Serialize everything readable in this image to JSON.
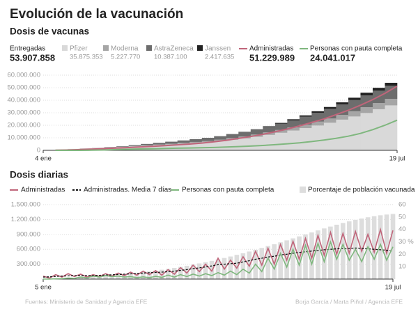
{
  "title": "Evolución de la vacunación",
  "source": "Fuentes: Ministerio de Sanidad y Agencia EFE",
  "credit": "Borja García / Marta Piñol / Agencia EFE",
  "chart_data": [
    {
      "type": "area",
      "stacked": true,
      "title": "Dosis de vacunas",
      "total_name": "Entregadas",
      "total": "53.907.858",
      "categories": [
        "4 ene",
        null,
        null,
        null,
        null,
        null,
        null,
        null,
        null,
        null,
        null,
        null,
        null,
        null,
        null,
        null,
        null,
        null,
        null,
        null,
        null,
        null,
        null,
        null,
        null,
        null,
        null,
        null,
        "19 jul"
      ],
      "ylim": [
        0,
        60000000
      ],
      "yticks": [
        {
          "value": 0,
          "label": "0"
        },
        {
          "value": 10000000,
          "label": "10.000.000"
        },
        {
          "value": 20000000,
          "label": "20.000.000"
        },
        {
          "value": 30000000,
          "label": "30.000.000"
        },
        {
          "value": 40000000,
          "label": "40.000.000"
        },
        {
          "value": 50000000,
          "label": "50.000.000"
        },
        {
          "value": 60000000,
          "label": "60.000.000"
        }
      ],
      "grid": true,
      "series": [
        {
          "name": "Pfizer",
          "legend_value": "35.875.353",
          "color": "#d9d9d9",
          "values": [
            350000,
            700000,
            1100000,
            1500000,
            1900000,
            2300000,
            2600000,
            3100000,
            3600000,
            4100000,
            4600000,
            5200000,
            5800000,
            6500000,
            7300000,
            8400000,
            9500000,
            10800000,
            12300000,
            14000000,
            15800000,
            17700000,
            19800000,
            22000000,
            24500000,
            27000000,
            29800000,
            32800000,
            35875353
          ]
        },
        {
          "name": "Moderna",
          "legend_value": "5.227.770",
          "color": "#a6a6a6",
          "values": [
            0,
            0,
            50000,
            100000,
            150000,
            200000,
            300000,
            400000,
            500000,
            600000,
            700000,
            800000,
            900000,
            1000000,
            1200000,
            1400000,
            1600000,
            1800000,
            2000000,
            2200000,
            2500000,
            2800000,
            3100000,
            3400000,
            3800000,
            4200000,
            4600000,
            4900000,
            5227770
          ]
        },
        {
          "name": "AstraZeneca",
          "legend_value": "10.387.100",
          "color": "#6d6d6d",
          "values": [
            0,
            0,
            0,
            0,
            0,
            200000,
            400000,
            700000,
            1000000,
            1300000,
            1600000,
            1900000,
            2200000,
            2500000,
            2800000,
            3100000,
            3500000,
            3900000,
            4400000,
            5000000,
            5600000,
            6300000,
            7000000,
            7700000,
            8300000,
            8900000,
            9500000,
            9900000,
            10387100
          ]
        },
        {
          "name": "Janssen",
          "legend_value": "2.417.635",
          "color": "#222222",
          "values": [
            0,
            0,
            0,
            0,
            0,
            0,
            0,
            0,
            0,
            0,
            0,
            0,
            0,
            0,
            0,
            100000,
            200000,
            300000,
            500000,
            700000,
            900000,
            1100000,
            1300000,
            1500000,
            1700000,
            1900000,
            2100000,
            2300000,
            2417635
          ]
        },
        {
          "name": "Administradas",
          "type": "line",
          "legend_value": "51.229.989",
          "color": "#c0657a",
          "values": [
            100000,
            300000,
            600000,
            1000000,
            1400000,
            1800000,
            2200000,
            2700000,
            3200000,
            3800000,
            4400000,
            5000000,
            5800000,
            6800000,
            8000000,
            9500000,
            11000000,
            12800000,
            14800000,
            17000000,
            19500000,
            22200000,
            25000000,
            28500000,
            32000000,
            36000000,
            40500000,
            45500000,
            51229989
          ]
        },
        {
          "name": "Personas con pauta completa",
          "type": "line",
          "legend_value": "24.041.017",
          "color": "#7fb77e",
          "values": [
            0,
            0,
            0,
            100000,
            300000,
            600000,
            900000,
            1100000,
            1300000,
            1500000,
            1700000,
            1900000,
            2100000,
            2300000,
            2600000,
            3000000,
            3400000,
            3900000,
            4500000,
            5200000,
            6000000,
            7000000,
            8200000,
            9600000,
            11300000,
            13500000,
            16500000,
            20000000,
            24041017
          ]
        }
      ]
    },
    {
      "type": "line",
      "title": "Dosis diarias",
      "categories": [
        "5 ene",
        null,
        null,
        null,
        null,
        null,
        null,
        null,
        null,
        null,
        null,
        null,
        null,
        null,
        null,
        null,
        null,
        null,
        null,
        null,
        null,
        null,
        null,
        null,
        null,
        null,
        null,
        null,
        null,
        null,
        null,
        null,
        null,
        null,
        null,
        null,
        null,
        null,
        null,
        null,
        null,
        null,
        null,
        null,
        null,
        null,
        null,
        null,
        null,
        null,
        null,
        null,
        null,
        null,
        null,
        null,
        "19 jul"
      ],
      "ylim": [
        0,
        1500000
      ],
      "yticks": [
        {
          "value": 300000,
          "label": "300.000"
        },
        {
          "value": 600000,
          "label": "600.000"
        },
        {
          "value": 900000,
          "label": "900.000"
        },
        {
          "value": 1200000,
          "label": "1.200.000"
        },
        {
          "value": 1500000,
          "label": "1.500.000"
        }
      ],
      "y2lim": [
        0,
        60
      ],
      "y2ticks": [
        10,
        20,
        {
          "value": 30,
          "label": "30 %"
        },
        40,
        50,
        60
      ],
      "grid": true,
      "series": [
        {
          "name": "Administradas",
          "color": "#c0657a",
          "values": [
            60000,
            20000,
            90000,
            40000,
            110000,
            50000,
            100000,
            40000,
            90000,
            50000,
            110000,
            60000,
            120000,
            70000,
            140000,
            80000,
            160000,
            90000,
            170000,
            80000,
            190000,
            100000,
            230000,
            120000,
            280000,
            150000,
            300000,
            160000,
            420000,
            200000,
            380000,
            220000,
            450000,
            260000,
            560000,
            280000,
            620000,
            300000,
            700000,
            380000,
            760000,
            400000,
            820000,
            420000,
            880000,
            480000,
            940000,
            500000,
            920000,
            520000,
            960000,
            560000,
            900000,
            540000,
            1000000,
            520000,
            980000
          ]
        },
        {
          "name": "Administradas. Media 7 días",
          "color": "#111111",
          "dashed": true,
          "values": [
            40000,
            45000,
            55000,
            60000,
            65000,
            70000,
            72000,
            70000,
            72000,
            75000,
            80000,
            85000,
            92000,
            98000,
            105000,
            112000,
            120000,
            128000,
            135000,
            140000,
            150000,
            160000,
            175000,
            190000,
            210000,
            225000,
            245000,
            265000,
            290000,
            300000,
            310000,
            320000,
            345000,
            370000,
            400000,
            420000,
            445000,
            460000,
            485000,
            500000,
            520000,
            535000,
            550000,
            565000,
            575000,
            590000,
            600000,
            610000,
            615000,
            620000,
            625000,
            620000,
            610000,
            600000,
            590000,
            580000,
            560000
          ]
        },
        {
          "name": "Personas con pauta completa",
          "color": "#7fb77e",
          "values": [
            0,
            0,
            5000,
            10000,
            20000,
            15000,
            40000,
            25000,
            60000,
            40000,
            70000,
            50000,
            60000,
            40000,
            50000,
            30000,
            45000,
            30000,
            55000,
            35000,
            80000,
            40000,
            90000,
            50000,
            100000,
            60000,
            110000,
            70000,
            130000,
            80000,
            160000,
            90000,
            200000,
            120000,
            300000,
            150000,
            420000,
            200000,
            520000,
            240000,
            600000,
            280000,
            680000,
            300000,
            720000,
            350000,
            750000,
            400000,
            700000,
            380000,
            600000,
            350000,
            650000,
            400000,
            700000,
            380000,
            650000
          ]
        },
        {
          "name": "Porcentaje de población vacunada",
          "type": "bar",
          "axis": "y2",
          "color": "#dddddd",
          "values": [
            0.2,
            0.3,
            0.5,
            0.7,
            0.9,
            1.1,
            1.4,
            1.7,
            2.0,
            2.4,
            2.8,
            3.2,
            3.6,
            4.1,
            4.6,
            5.1,
            5.6,
            6.2,
            6.8,
            7.5,
            8.2,
            9.0,
            9.8,
            10.7,
            11.6,
            12.6,
            13.6,
            14.7,
            15.8,
            17.0,
            18.2,
            19.5,
            20.8,
            22.2,
            23.6,
            25.1,
            26.6,
            28.1,
            29.6,
            31.2,
            32.8,
            34.4,
            36.0,
            37.6,
            39.2,
            40.8,
            42.3,
            43.8,
            45.2,
            46.5,
            47.7,
            48.8,
            49.8,
            50.7,
            51.4,
            52.0,
            52.5
          ]
        }
      ]
    }
  ]
}
